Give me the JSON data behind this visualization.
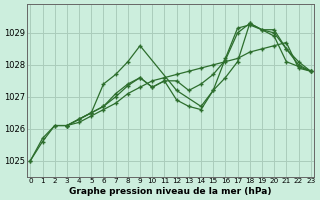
{
  "title": "Graphe pression niveau de la mer (hPa)",
  "bg_color": "#cceedd",
  "grid_color": "#aaccbb",
  "line_color": "#2d6e2d",
  "xlim": [
    -0.3,
    23.3
  ],
  "ylim": [
    1024.5,
    1029.9
  ],
  "yticks": [
    1025,
    1026,
    1027,
    1028,
    1029
  ],
  "xticks": [
    0,
    1,
    2,
    3,
    4,
    5,
    6,
    7,
    8,
    9,
    10,
    11,
    12,
    13,
    14,
    15,
    16,
    17,
    18,
    19,
    20,
    21,
    22,
    23
  ],
  "lines": [
    {
      "x": [
        0,
        1,
        2,
        3,
        4,
        5,
        6,
        7,
        8,
        9,
        10,
        11,
        12,
        13,
        14,
        15,
        16,
        17,
        18,
        19,
        20,
        21,
        22,
        23
      ],
      "y": [
        1025.0,
        1025.6,
        1026.1,
        1026.1,
        1026.2,
        1026.4,
        1026.6,
        1026.8,
        1027.1,
        1027.3,
        1027.5,
        1027.6,
        1027.7,
        1027.8,
        1027.9,
        1028.0,
        1028.1,
        1028.2,
        1028.4,
        1028.5,
        1028.6,
        1028.7,
        1027.9,
        1027.8
      ]
    },
    {
      "x": [
        0,
        1,
        2,
        3,
        5,
        6,
        7,
        8,
        9,
        12,
        14,
        15,
        16,
        17,
        18,
        20,
        21,
        23
      ],
      "y": [
        1025.0,
        1025.7,
        1026.1,
        1026.1,
        1026.5,
        1027.4,
        1027.7,
        1028.1,
        1028.6,
        1027.2,
        1026.7,
        1027.2,
        1027.6,
        1028.1,
        1029.3,
        1028.9,
        1028.1,
        1027.8
      ]
    },
    {
      "x": [
        3,
        4,
        5,
        6,
        7,
        8,
        9,
        10,
        11,
        12,
        13,
        14,
        15,
        16,
        17,
        18,
        19,
        20,
        21,
        22,
        23
      ],
      "y": [
        1026.1,
        1026.3,
        1026.5,
        1026.7,
        1027.0,
        1027.35,
        1027.6,
        1027.3,
        1027.5,
        1026.9,
        1026.7,
        1026.6,
        1027.2,
        1028.2,
        1029.15,
        1029.25,
        1029.1,
        1029.0,
        1028.5,
        1028.0,
        1027.8
      ]
    },
    {
      "x": [
        3,
        4,
        5,
        6,
        7,
        8,
        9,
        10,
        11,
        12,
        13,
        14,
        15,
        16,
        17,
        18,
        19,
        20,
        21,
        22,
        23
      ],
      "y": [
        1026.1,
        1026.3,
        1026.5,
        1026.7,
        1027.1,
        1027.4,
        1027.6,
        1027.3,
        1027.5,
        1027.5,
        1027.2,
        1027.4,
        1027.7,
        1028.15,
        1029.0,
        1029.3,
        1029.1,
        1029.1,
        1028.5,
        1028.1,
        1027.8
      ]
    }
  ]
}
